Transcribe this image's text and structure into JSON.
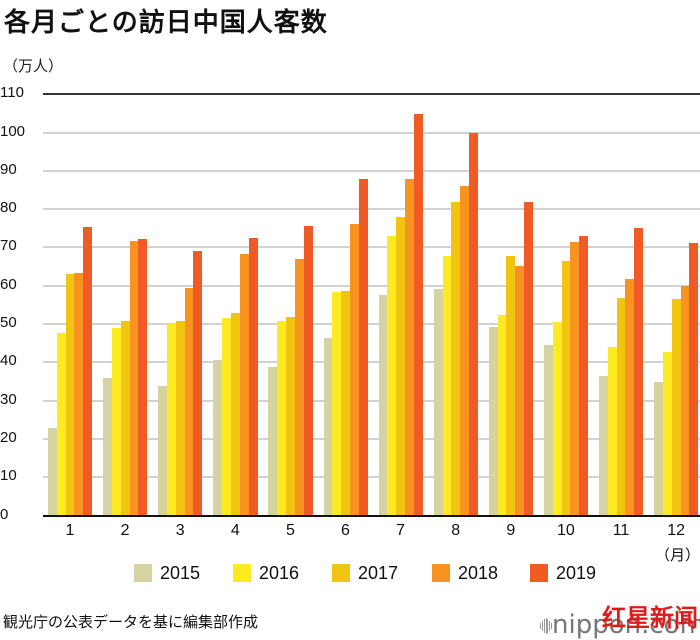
{
  "header": {
    "title": "各月ごとの訪日中国人客数",
    "unit_label": "（万人）"
  },
  "x_axis_unit": "（月）",
  "source_note": "観光庁の公表データを基に編集部作成",
  "watermark": {
    "brand": "nippon.com",
    "overlay": "红星新闻"
  },
  "colors": {
    "2015": "#D5D39F",
    "2016": "#FDEA20",
    "2017": "#F1C40F",
    "2018": "#F7931E",
    "2019": "#F05A24",
    "grid": "#D2D2D2",
    "axis": "#111111"
  },
  "legend": [
    {
      "label": "2015",
      "color": "#D5D39F"
    },
    {
      "label": "2016",
      "color": "#FDEA20"
    },
    {
      "label": "2017",
      "color": "#F1C40F"
    },
    {
      "label": "2018",
      "color": "#F7931E"
    },
    {
      "label": "2019",
      "color": "#F05A24"
    }
  ],
  "chart_data": {
    "type": "bar",
    "title": "各月ごとの訪日中国人客数",
    "xlabel": "（月）",
    "ylabel": "（万人）",
    "ylim": [
      0,
      110
    ],
    "yticks": [
      0,
      10,
      20,
      30,
      40,
      50,
      60,
      70,
      80,
      90,
      100,
      110
    ],
    "grid": true,
    "legend_position": "bottom",
    "categories": [
      "1",
      "2",
      "3",
      "4",
      "5",
      "6",
      "7",
      "8",
      "9",
      "10",
      "11",
      "12"
    ],
    "series": [
      {
        "name": "2015",
        "values": [
          22.8,
          35.9,
          33.8,
          40.6,
          38.7,
          46.3,
          57.6,
          59.1,
          49.1,
          44.5,
          36.3,
          34.8
        ]
      },
      {
        "name": "2016",
        "values": [
          47.6,
          49.0,
          49.9,
          51.5,
          50.7,
          58.3,
          73.0,
          67.8,
          52.3,
          50.6,
          43.9,
          42.8
        ]
      },
      {
        "name": "2017",
        "values": [
          63.1,
          50.9,
          50.8,
          52.9,
          51.7,
          58.7,
          78.0,
          81.9,
          67.8,
          66.4,
          56.7,
          56.4
        ]
      },
      {
        "name": "2018",
        "values": [
          63.3,
          71.6,
          59.5,
          68.3,
          66.9,
          76.1,
          87.8,
          86.0,
          65.2,
          71.4,
          61.7,
          59.8
        ]
      },
      {
        "name": "2019",
        "values": [
          75.4,
          72.3,
          69.1,
          72.5,
          75.6,
          87.9,
          104.8,
          99.9,
          81.8,
          72.9,
          75.0,
          71.1
        ]
      }
    ]
  }
}
